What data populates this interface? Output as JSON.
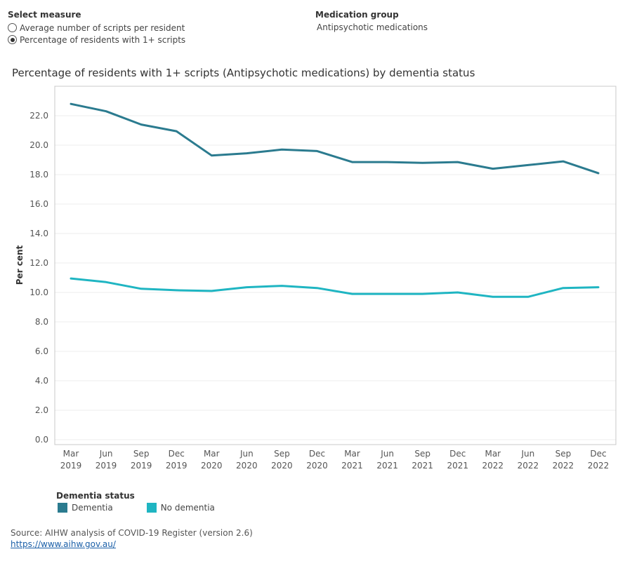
{
  "controls": {
    "measure": {
      "title": "Select measure",
      "options": [
        {
          "label": "Average number of scripts per resident",
          "selected": false
        },
        {
          "label": "Percentage of residents with 1+ scripts",
          "selected": true
        }
      ]
    },
    "medication_group": {
      "title": "Medication group",
      "value": "Antipsychotic medications"
    }
  },
  "chart_data": {
    "type": "line",
    "title": "Percentage of residents with 1+ scripts (Antipsychotic medications) by dementia status",
    "ylabel": "Per cent",
    "xlabel": "",
    "ylim": [
      0,
      23.5
    ],
    "yticks": [
      "0.0",
      "2.0",
      "4.0",
      "6.0",
      "8.0",
      "10.0",
      "12.0",
      "14.0",
      "16.0",
      "18.0",
      "20.0",
      "22.0"
    ],
    "categories": [
      [
        "Mar",
        "2019"
      ],
      [
        "Jun",
        "2019"
      ],
      [
        "Sep",
        "2019"
      ],
      [
        "Dec",
        "2019"
      ],
      [
        "Mar",
        "2020"
      ],
      [
        "Jun",
        "2020"
      ],
      [
        "Sep",
        "2020"
      ],
      [
        "Dec",
        "2020"
      ],
      [
        "Mar",
        "2021"
      ],
      [
        "Jun",
        "2021"
      ],
      [
        "Sep",
        "2021"
      ],
      [
        "Dec",
        "2021"
      ],
      [
        "Mar",
        "2022"
      ],
      [
        "Jun",
        "2022"
      ],
      [
        "Sep",
        "2022"
      ],
      [
        "Dec",
        "2022"
      ]
    ],
    "series": [
      {
        "name": "Dementia",
        "color": "#2b7b8f",
        "values": [
          22.8,
          22.3,
          21.4,
          20.95,
          19.3,
          19.45,
          19.7,
          19.6,
          18.85,
          18.85,
          18.8,
          18.85,
          18.4,
          18.65,
          18.9,
          18.1
        ]
      },
      {
        "name": "No dementia",
        "color": "#1fb5c2",
        "values": [
          10.95,
          10.7,
          10.25,
          10.15,
          10.1,
          10.35,
          10.45,
          10.3,
          9.9,
          9.9,
          9.9,
          10.0,
          9.7,
          9.7,
          10.3,
          10.35
        ]
      }
    ],
    "grid": true,
    "legend_position": "bottom-left"
  },
  "legend": {
    "title": "Dementia status",
    "items": [
      {
        "label": "Dementia",
        "color": "#2b7b8f"
      },
      {
        "label": "No dementia",
        "color": "#1fb5c2"
      }
    ]
  },
  "footer": {
    "source": "Source: AIHW analysis of COVID-19 Register (version 2.6)",
    "link": "https://www.aihw.gov.au/"
  }
}
